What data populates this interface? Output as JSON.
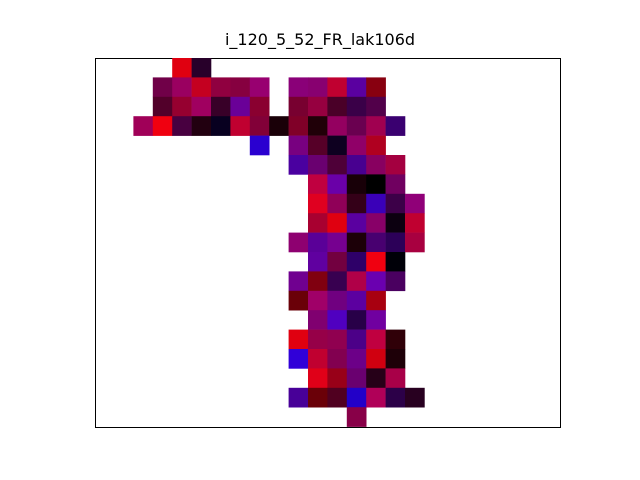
{
  "chart_data": {
    "type": "heatmap",
    "title": "i_120_5_52_FR_lak106d",
    "xlabel": "",
    "ylabel": "",
    "axes_visible": false,
    "cells": [
      {
        "col": 3,
        "row": 0,
        "color": "#e00010"
      },
      {
        "col": 4,
        "row": 0,
        "color": "#28002a"
      },
      {
        "col": 2,
        "row": 1,
        "color": "#700048"
      },
      {
        "col": 3,
        "row": 1,
        "color": "#9a0060"
      },
      {
        "col": 4,
        "row": 1,
        "color": "#c40020"
      },
      {
        "col": 5,
        "row": 1,
        "color": "#900040"
      },
      {
        "col": 6,
        "row": 1,
        "color": "#860040"
      },
      {
        "col": 7,
        "row": 1,
        "color": "#980070"
      },
      {
        "col": 9,
        "row": 1,
        "color": "#8a0078"
      },
      {
        "col": 10,
        "row": 1,
        "color": "#880070"
      },
      {
        "col": 11,
        "row": 1,
        "color": "#c00030"
      },
      {
        "col": 12,
        "row": 1,
        "color": "#5a00a0"
      },
      {
        "col": 13,
        "row": 1,
        "color": "#880010"
      },
      {
        "col": 2,
        "row": 2,
        "color": "#52002a"
      },
      {
        "col": 3,
        "row": 2,
        "color": "#960030"
      },
      {
        "col": 4,
        "row": 2,
        "color": "#a00060"
      },
      {
        "col": 5,
        "row": 2,
        "color": "#380028"
      },
      {
        "col": 6,
        "row": 2,
        "color": "#6a0098"
      },
      {
        "col": 7,
        "row": 2,
        "color": "#8a0030"
      },
      {
        "col": 9,
        "row": 2,
        "color": "#780030"
      },
      {
        "col": 10,
        "row": 2,
        "color": "#960040"
      },
      {
        "col": 11,
        "row": 2,
        "color": "#4a0028"
      },
      {
        "col": 12,
        "row": 2,
        "color": "#3a0048"
      },
      {
        "col": 13,
        "row": 2,
        "color": "#52004a"
      },
      {
        "col": 1,
        "row": 3,
        "color": "#a00058"
      },
      {
        "col": 2,
        "row": 3,
        "color": "#f00010"
      },
      {
        "col": 3,
        "row": 3,
        "color": "#480040"
      },
      {
        "col": 4,
        "row": 3,
        "color": "#220010"
      },
      {
        "col": 5,
        "row": 3,
        "color": "#080020"
      },
      {
        "col": 6,
        "row": 3,
        "color": "#c00030"
      },
      {
        "col": 7,
        "row": 3,
        "color": "#820038"
      },
      {
        "col": 8,
        "row": 3,
        "color": "#1a0008"
      },
      {
        "col": 9,
        "row": 3,
        "color": "#800028"
      },
      {
        "col": 10,
        "row": 3,
        "color": "#200008"
      },
      {
        "col": 11,
        "row": 3,
        "color": "#940060"
      },
      {
        "col": 12,
        "row": 3,
        "color": "#6a0050"
      },
      {
        "col": 13,
        "row": 3,
        "color": "#a00050"
      },
      {
        "col": 14,
        "row": 3,
        "color": "#3a0070"
      },
      {
        "col": 7,
        "row": 4,
        "color": "#2a00d0"
      },
      {
        "col": 9,
        "row": 4,
        "color": "#780080"
      },
      {
        "col": 10,
        "row": 4,
        "color": "#560028"
      },
      {
        "col": 11,
        "row": 4,
        "color": "#0e0020"
      },
      {
        "col": 12,
        "row": 4,
        "color": "#900068"
      },
      {
        "col": 13,
        "row": 4,
        "color": "#b00020"
      },
      {
        "col": 9,
        "row": 5,
        "color": "#4a00a0"
      },
      {
        "col": 10,
        "row": 5,
        "color": "#6a0070"
      },
      {
        "col": 11,
        "row": 5,
        "color": "#4e0038"
      },
      {
        "col": 12,
        "row": 5,
        "color": "#480090"
      },
      {
        "col": 13,
        "row": 5,
        "color": "#880060"
      },
      {
        "col": 14,
        "row": 5,
        "color": "#a40040"
      },
      {
        "col": 10,
        "row": 6,
        "color": "#c00040"
      },
      {
        "col": 11,
        "row": 6,
        "color": "#6a00a8"
      },
      {
        "col": 12,
        "row": 6,
        "color": "#180008"
      },
      {
        "col": 13,
        "row": 6,
        "color": "#000000"
      },
      {
        "col": 14,
        "row": 6,
        "color": "#700060"
      },
      {
        "col": 10,
        "row": 7,
        "color": "#e00020"
      },
      {
        "col": 11,
        "row": 7,
        "color": "#900058"
      },
      {
        "col": 12,
        "row": 7,
        "color": "#340018"
      },
      {
        "col": 13,
        "row": 7,
        "color": "#3a00b8"
      },
      {
        "col": 14,
        "row": 7,
        "color": "#3c0048"
      },
      {
        "col": 15,
        "row": 7,
        "color": "#900078"
      },
      {
        "col": 10,
        "row": 8,
        "color": "#a80030"
      },
      {
        "col": 11,
        "row": 8,
        "color": "#e00010"
      },
      {
        "col": 12,
        "row": 8,
        "color": "#5a00a0"
      },
      {
        "col": 13,
        "row": 8,
        "color": "#880068"
      },
      {
        "col": 14,
        "row": 8,
        "color": "#0c0010"
      },
      {
        "col": 15,
        "row": 8,
        "color": "#c00030"
      },
      {
        "col": 9,
        "row": 9,
        "color": "#8e0070"
      },
      {
        "col": 10,
        "row": 9,
        "color": "#5a0098"
      },
      {
        "col": 11,
        "row": 9,
        "color": "#760090"
      },
      {
        "col": 12,
        "row": 9,
        "color": "#1c0008"
      },
      {
        "col": 13,
        "row": 9,
        "color": "#480070"
      },
      {
        "col": 14,
        "row": 9,
        "color": "#2c0058"
      },
      {
        "col": 15,
        "row": 9,
        "color": "#a80040"
      },
      {
        "col": 10,
        "row": 10,
        "color": "#6000a0"
      },
      {
        "col": 11,
        "row": 10,
        "color": "#720040"
      },
      {
        "col": 12,
        "row": 10,
        "color": "#2e0068"
      },
      {
        "col": 13,
        "row": 10,
        "color": "#f00010"
      },
      {
        "col": 14,
        "row": 10,
        "color": "#000008"
      },
      {
        "col": 9,
        "row": 11,
        "color": "#700090"
      },
      {
        "col": 10,
        "row": 11,
        "color": "#800010"
      },
      {
        "col": 11,
        "row": 11,
        "color": "#380050"
      },
      {
        "col": 12,
        "row": 11,
        "color": "#b00048"
      },
      {
        "col": 13,
        "row": 11,
        "color": "#6a00b0"
      },
      {
        "col": 14,
        "row": 11,
        "color": "#4a0060"
      },
      {
        "col": 9,
        "row": 12,
        "color": "#6a0008"
      },
      {
        "col": 10,
        "row": 12,
        "color": "#a00068"
      },
      {
        "col": 11,
        "row": 12,
        "color": "#700080"
      },
      {
        "col": 12,
        "row": 12,
        "color": "#5c00a0"
      },
      {
        "col": 13,
        "row": 12,
        "color": "#a80010"
      },
      {
        "col": 10,
        "row": 13,
        "color": "#800070"
      },
      {
        "col": 11,
        "row": 13,
        "color": "#5000c0"
      },
      {
        "col": 12,
        "row": 13,
        "color": "#280048"
      },
      {
        "col": 13,
        "row": 13,
        "color": "#7000a0"
      },
      {
        "col": 9,
        "row": 14,
        "color": "#e00010"
      },
      {
        "col": 10,
        "row": 14,
        "color": "#960048"
      },
      {
        "col": 11,
        "row": 14,
        "color": "#900050"
      },
      {
        "col": 12,
        "row": 14,
        "color": "#4c0088"
      },
      {
        "col": 13,
        "row": 14,
        "color": "#c00040"
      },
      {
        "col": 14,
        "row": 14,
        "color": "#300008"
      },
      {
        "col": 9,
        "row": 15,
        "color": "#3000d8"
      },
      {
        "col": 10,
        "row": 15,
        "color": "#c00030"
      },
      {
        "col": 11,
        "row": 15,
        "color": "#820050"
      },
      {
        "col": 12,
        "row": 15,
        "color": "#6c0088"
      },
      {
        "col": 13,
        "row": 15,
        "color": "#d00010"
      },
      {
        "col": 14,
        "row": 15,
        "color": "#1e0008"
      },
      {
        "col": 10,
        "row": 16,
        "color": "#e00018"
      },
      {
        "col": 11,
        "row": 16,
        "color": "#980018"
      },
      {
        "col": 12,
        "row": 16,
        "color": "#6a0070"
      },
      {
        "col": 13,
        "row": 16,
        "color": "#260018"
      },
      {
        "col": 14,
        "row": 16,
        "color": "#a80048"
      },
      {
        "col": 9,
        "row": 17,
        "color": "#480098"
      },
      {
        "col": 10,
        "row": 17,
        "color": "#6a0008"
      },
      {
        "col": 11,
        "row": 17,
        "color": "#500020"
      },
      {
        "col": 12,
        "row": 17,
        "color": "#2200c8"
      },
      {
        "col": 13,
        "row": 17,
        "color": "#b00058"
      },
      {
        "col": 14,
        "row": 17,
        "color": "#2c0048"
      },
      {
        "col": 15,
        "row": 17,
        "color": "#280020"
      },
      {
        "col": 12,
        "row": 18,
        "color": "#880048"
      }
    ]
  }
}
